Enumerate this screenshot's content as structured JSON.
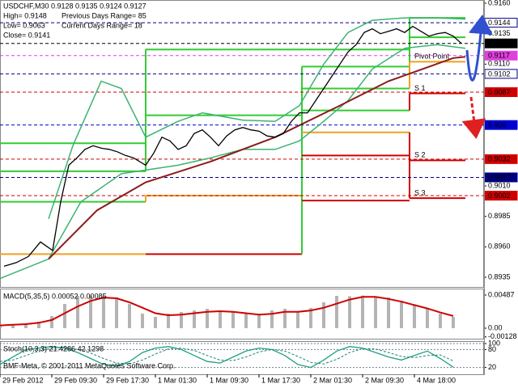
{
  "chart_data": [
    {
      "type": "line",
      "title": "USDCHF,M30  0.9128 0.9135 0.9124 0.9127",
      "info": [
        "High= 0.9148",
        "Previous Days Range= 85",
        "Low= 0.9063",
        "Current Days Range= 18",
        "Close= 0.9141"
      ],
      "xlim": [
        0,
        150
      ],
      "ylim": [
        0.8935,
        0.916
      ],
      "yticks": [
        {
          "value": 0.916,
          "label": "0.9160"
        },
        0.9135,
        {
          "value": 0.911,
          "label": "0.9110"
        },
        {
          "value": 0.901,
          "label": "0.9010"
        },
        0.8985,
        {
          "value": 0.896,
          "label": "0.8960"
        },
        0.8935
      ],
      "price_levels": [
        {
          "value": 0.9144,
          "color": "#000080",
          "fill": "#ffffff"
        },
        {
          "value": 0.9127,
          "color": "#000000",
          "fill": "#000000"
        },
        {
          "value": 0.9117,
          "color": "#e040e0",
          "fill": "#e040e0"
        },
        {
          "value": 0.9102,
          "color": "#000080",
          "fill": "#ffffff"
        },
        {
          "value": 0.9087,
          "color": "#d00000",
          "fill": "#d00000"
        },
        {
          "value": 0.906,
          "color": "#0000d0",
          "fill": "#0000d0"
        },
        {
          "value": 0.9032,
          "color": "#d00000",
          "fill": "#d00000"
        },
        {
          "value": 0.9017,
          "color": "#000080",
          "fill": "#000080"
        },
        {
          "value": 0.9002,
          "color": "#d00000",
          "fill": "#d00000"
        }
      ],
      "pivots": [
        {
          "x": [
            0,
            45
          ],
          "levels": [
            {
              "value": 0.9045,
              "color": "#33cc33"
            },
            {
              "value": 0.9022,
              "color": "#33cc33"
            },
            {
              "value": 0.8997,
              "color": "#33cc33"
            },
            {
              "value": 0.8954,
              "color": "#f0a020"
            }
          ]
        },
        {
          "x": [
            45,
            93.25
          ],
          "levels": [
            {
              "value": 0.9122,
              "color": "#33cc33"
            },
            {
              "value": 0.9068,
              "color": "#33cc33"
            },
            {
              "value": 0.9002,
              "color": "#f0a020"
            },
            {
              "value": 0.8954,
              "color": "#d00000"
            }
          ]
        },
        {
          "x": [
            93.25,
            126.5
          ],
          "levels": [
            {
              "value": 0.9122,
              "color": "#33cc33"
            },
            {
              "value": 0.9108,
              "color": "#33cc33"
            },
            {
              "value": 0.909,
              "color": "#33cc33"
            },
            {
              "value": 0.9072,
              "color": "#33cc33"
            },
            {
              "value": 0.9054,
              "color": "#f0a020"
            },
            {
              "value": 0.9035,
              "color": "#d00000"
            },
            {
              "value": 0.8998,
              "color": "#d00000"
            }
          ]
        },
        {
          "x": [
            126.5,
            143.75
          ],
          "levels": [
            {
              "value": 0.9148,
              "color": "#33cc33"
            },
            {
              "value": 0.9132,
              "color": "#33cc33"
            },
            {
              "value": 0.9112,
              "color": "#f0a020",
              "label": "Pivot Point"
            },
            {
              "value": 0.9086,
              "color": "#d00000",
              "label": "S 1"
            },
            {
              "value": 0.9031,
              "color": "#d00000",
              "label": "S 2"
            },
            {
              "value": 0.9,
              "color": "#d00000",
              "label": "S 3"
            }
          ]
        }
      ],
      "series": [
        {
          "color": "#3cb371",
          "width": 1.5,
          "x": [
            15,
            22.5,
            31.25,
            37.5,
            45,
            55,
            62.5,
            75,
            85,
            92.5,
            100,
            107.5,
            115,
            125,
            135,
            143.75
          ],
          "values": [
            0.8983,
            0.9043,
            0.9096,
            0.909,
            0.905,
            0.9063,
            0.907,
            0.9064,
            0.9063,
            0.9076,
            0.911,
            0.9136,
            0.9146,
            0.9148,
            0.9148,
            0.9147
          ]
        },
        {
          "color": "#3cb371",
          "width": 1.5,
          "x": [
            0,
            15,
            25,
            37.5,
            45,
            55,
            65,
            75,
            85,
            92.5,
            100,
            107.5,
            115,
            125,
            135,
            143.75
          ],
          "values": [
            0.8934,
            0.895,
            0.8997,
            0.902,
            0.9023,
            0.9027,
            0.9033,
            0.904,
            0.904,
            0.9047,
            0.9063,
            0.908,
            0.9106,
            0.9123,
            0.9126,
            0.9123
          ]
        },
        {
          "color": "#8b1a1a",
          "width": 2,
          "x": [
            15,
            30,
            45,
            65,
            85,
            105,
            120,
            140,
            143.75
          ],
          "values": [
            0.895,
            0.899,
            0.9013,
            0.903,
            0.905,
            0.9076,
            0.9096,
            0.9115,
            0.9116
          ]
        },
        {
          "color": "#000000",
          "width": 1.3,
          "x": [
            1.25,
            5,
            8.75,
            12.5,
            16.25,
            18.75,
            21.25,
            23.75,
            26.25,
            28.75,
            31.25,
            33.75,
            36.25,
            38.75,
            41.25,
            45,
            47.5,
            50,
            52.5,
            55,
            57.5,
            60,
            62.5,
            65,
            67.5,
            70,
            72.5,
            75,
            77.5,
            80,
            82.5,
            85,
            87.5,
            90,
            92.5,
            95,
            97.5,
            100,
            102.5,
            105,
            107.5,
            110,
            112.5,
            115,
            117.5,
            120,
            122.5,
            125,
            127.5,
            130,
            132.5,
            135,
            137.5,
            140,
            142.5
          ],
          "values": [
            0.8944,
            0.8947,
            0.8952,
            0.8964,
            0.8957,
            0.8997,
            0.9027,
            0.9033,
            0.904,
            0.9043,
            0.9041,
            0.904,
            0.9038,
            0.9035,
            0.9033,
            0.9027,
            0.9037,
            0.905,
            0.9047,
            0.904,
            0.9043,
            0.9053,
            0.9056,
            0.905,
            0.9043,
            0.9051,
            0.9056,
            0.9058,
            0.9056,
            0.9055,
            0.9051,
            0.905,
            0.9053,
            0.9063,
            0.907,
            0.907,
            0.908,
            0.909,
            0.91,
            0.911,
            0.912,
            0.9126,
            0.9136,
            0.9139,
            0.9135,
            0.9137,
            0.9139,
            0.9136,
            0.9141,
            0.9137,
            0.9133,
            0.9135,
            0.9136,
            0.9133,
            0.9127
          ]
        }
      ]
    },
    {
      "type": "bar",
      "title": "MACD(5,35,5) 0.00052 0.00085",
      "xlim": [
        0,
        150
      ],
      "ylim": [
        -0.00166,
        0.0057
      ],
      "yticks": [
        0.00487,
        {
          "value": 0,
          "label": "0.00"
        },
        -0.00128
      ],
      "color": "#b4b4b4",
      "x": [
        0,
        4,
        8,
        12,
        16,
        20,
        24,
        28,
        32,
        36,
        40,
        44,
        48,
        52,
        56,
        60,
        64,
        68,
        72,
        76,
        80,
        84,
        88,
        92,
        96,
        100,
        104,
        108,
        112,
        116,
        120,
        124,
        128,
        132,
        136,
        140
      ],
      "values": [
        0.00048,
        0.00059,
        0.00071,
        0.00095,
        0.00178,
        0.00356,
        0.00475,
        0.0048,
        0.0047,
        0.00451,
        0.00356,
        0.00214,
        0.00166,
        0.00214,
        0.00238,
        0.00261,
        0.00285,
        0.00261,
        0.00238,
        0.00214,
        0.00214,
        0.00261,
        0.00285,
        0.00238,
        0.00297,
        0.0038,
        0.00475,
        0.0047,
        0.0048,
        0.00465,
        0.00451,
        0.00404,
        0.00333,
        0.00285,
        0.00214,
        0.00166
      ],
      "series": [
        {
          "color": "#d00000",
          "width": 2,
          "values": [
            0.0004,
            0.0005,
            0.0006,
            0.0008,
            0.0012,
            0.0022,
            0.0032,
            0.004,
            0.0045,
            0.0044,
            0.0038,
            0.003,
            0.0022,
            0.0019,
            0.002,
            0.0022,
            0.0024,
            0.0025,
            0.0024,
            0.0022,
            0.002,
            0.0021,
            0.0024,
            0.0024,
            0.0026,
            0.003,
            0.0036,
            0.0042,
            0.0046,
            0.0046,
            0.0043,
            0.0039,
            0.0034,
            0.0029,
            0.0023,
            0.0018
          ]
        }
      ]
    },
    {
      "type": "line",
      "title": "Stoch(10,3,3) 21.4286 42.1298",
      "footnote": "BMF-Meta, © 2001-2011 MetaQuotes Software Corp.",
      "xlim": [
        0,
        150
      ],
      "ylim": [
        0,
        100
      ],
      "yticks": [
        100,
        80,
        20
      ],
      "grid": true,
      "xticks": [
        {
          "value": 0,
          "label": "29 Feb 2012"
        },
        {
          "value": 16,
          "label": "29 Feb 09:30"
        },
        {
          "value": 32,
          "label": "29 Feb 17:30"
        },
        {
          "value": 48,
          "label": "1 Mar 01:30"
        },
        {
          "value": 64,
          "label": "1 Mar 09:30"
        },
        {
          "value": 80,
          "label": "1 Mar 17:30"
        },
        {
          "value": 96,
          "label": "2 Mar 01:30"
        },
        {
          "value": 112,
          "label": "2 Mar 09:30"
        },
        {
          "value": 128,
          "label": "4 Mar 18:00"
        }
      ],
      "series": [
        {
          "color": "#20a080",
          "width": 1.3,
          "x": [
            0,
            4,
            8,
            12,
            16,
            20,
            24,
            28,
            32,
            36,
            40,
            44,
            48,
            52,
            56,
            60,
            64,
            68,
            72,
            76,
            80,
            84,
            88,
            92,
            96,
            100,
            104,
            108,
            112,
            116,
            120,
            124,
            128,
            132,
            136,
            140
          ],
          "values": [
            30,
            55,
            80,
            85,
            90,
            85,
            70,
            50,
            30,
            25,
            40,
            70,
            85,
            90,
            80,
            60,
            40,
            35,
            55,
            75,
            85,
            80,
            60,
            30,
            20,
            45,
            75,
            90,
            85,
            70,
            55,
            45,
            60,
            75,
            50,
            21
          ]
        },
        {
          "color": "#208080",
          "width": 1,
          "dash": true,
          "x": [
            0,
            4,
            8,
            12,
            16,
            20,
            24,
            28,
            32,
            36,
            40,
            44,
            48,
            52,
            56,
            60,
            64,
            68,
            72,
            76,
            80,
            84,
            88,
            92,
            96,
            100,
            104,
            108,
            112,
            116,
            120,
            124,
            128,
            132,
            136,
            140
          ],
          "values": [
            40,
            45,
            60,
            75,
            85,
            87,
            80,
            68,
            50,
            35,
            32,
            45,
            65,
            82,
            85,
            77,
            60,
            45,
            43,
            55,
            72,
            80,
            75,
            57,
            37,
            32,
            47,
            70,
            83,
            82,
            70,
            57,
            53,
            60,
            62,
            42
          ]
        }
      ]
    }
  ]
}
